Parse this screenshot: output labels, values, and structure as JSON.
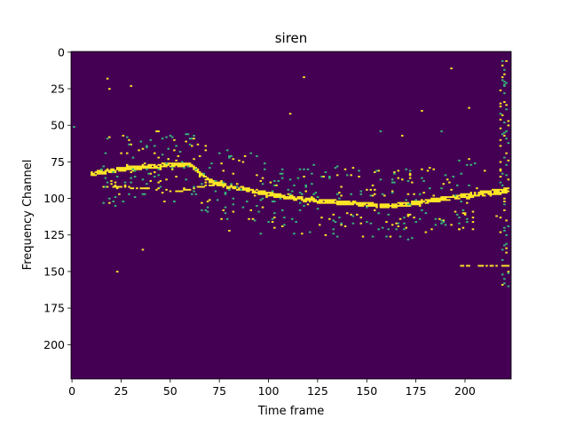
{
  "chart_data": {
    "type": "heatmap",
    "title": "siren",
    "xlabel": "Time frame",
    "ylabel": "Frequency Channel",
    "xlim": [
      0,
      223
    ],
    "ylim": [
      0,
      223
    ],
    "y_inverted": true,
    "x_ticks": [
      0,
      25,
      50,
      75,
      100,
      125,
      150,
      175,
      200
    ],
    "y_ticks": [
      0,
      25,
      50,
      75,
      100,
      125,
      150,
      175,
      200
    ],
    "colors": {
      "background": "#440154",
      "active": "#fde725",
      "mid": "#35b779"
    },
    "description_values": {
      "frames": 224,
      "channels": 224,
      "main_band": [
        [
          10,
          83
        ],
        [
          20,
          81
        ],
        [
          30,
          79
        ],
        [
          40,
          78
        ],
        [
          50,
          77
        ],
        [
          60,
          77
        ],
        [
          70,
          88
        ],
        [
          80,
          92
        ],
        [
          90,
          94
        ],
        [
          100,
          97
        ],
        [
          110,
          99
        ],
        [
          120,
          101
        ],
        [
          130,
          102
        ],
        [
          140,
          103
        ],
        [
          150,
          104
        ],
        [
          160,
          105
        ],
        [
          170,
          104
        ],
        [
          180,
          102
        ],
        [
          190,
          100
        ],
        [
          200,
          98
        ],
        [
          210,
          96
        ],
        [
          222,
          94
        ]
      ],
      "secondary_band": [
        [
          15,
          92
        ],
        [
          25,
          92
        ],
        [
          35,
          93
        ],
        [
          45,
          94
        ],
        [
          55,
          95
        ],
        [
          65,
          92
        ],
        [
          75,
          90
        ]
      ],
      "right_edge_vertical": {
        "x": 219,
        "y_range": [
          5,
          160
        ]
      },
      "right_edge_horizontal": {
        "y": 146,
        "x_range": [
          198,
          222
        ]
      }
    }
  }
}
